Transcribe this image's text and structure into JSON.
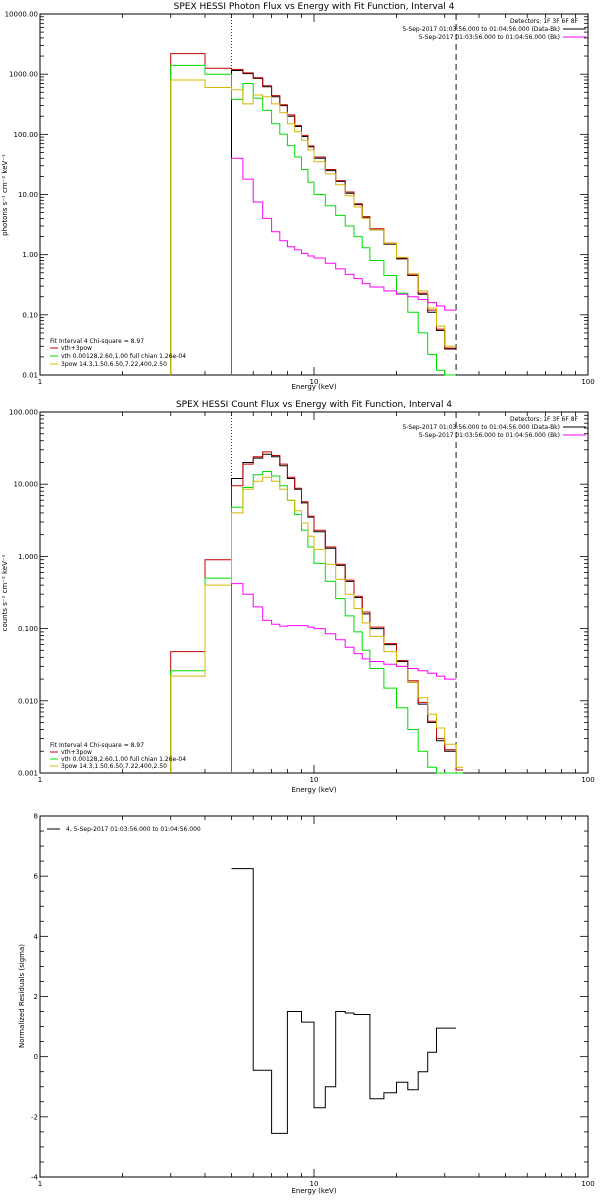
{
  "colors": {
    "total": "#000000",
    "vth_3pow": "#c00000",
    "vth": "#00dd00",
    "pow": "#d4b800",
    "background": "#ff00ff"
  },
  "chart_data": [
    {
      "type": "line",
      "title": "SPEX HESSI Photon Flux vs Energy with Fit Function, Interval 4",
      "xlabel": "Energy (keV)",
      "ylabel": "photons s⁻¹ cm⁻² keV⁻¹",
      "xscale": "log",
      "yscale": "log",
      "xlim": [
        1,
        100
      ],
      "ylim": [
        0.01,
        10000
      ],
      "x_ticks": [
        "1",
        "10",
        "100"
      ],
      "y_ticks": [
        "0.01",
        "0.10",
        "1.00",
        "10.00",
        "100.00",
        "1000.00",
        "10000.00"
      ],
      "detectors": "Detectors: 1F 3F 6F 8F",
      "data_label": "5-Sep-2017 01:03:56.000 to 01:04:56.000 (Data-Bk)",
      "bk_label": "5-Sep-2017 01:03:56.000 to 01:04:56.000 (Bk)",
      "fit_text": "Fit Interval 4   Chi-square = 8.97",
      "legend": [
        "vth+3pow",
        "vth 0.00128,2.60,1.00  full chian 1.26e-04",
        "3pow 14.3,1.50,6.50,7.22,400,2.50"
      ],
      "fit_range": [
        5,
        33
      ],
      "bin_edges": [
        3.0,
        4.0,
        5.0,
        5.5,
        6.0,
        6.5,
        7.0,
        7.5,
        8.0,
        8.5,
        9.0,
        9.5,
        10.0,
        11.0,
        12.0,
        13.0,
        14.0,
        15.0,
        16.0,
        18.0,
        20.0,
        22.0,
        24.0,
        26.0,
        28.0,
        30.0,
        33.0
      ],
      "series": [
        {
          "name": "total_dk",
          "color_key": "total",
          "values": [
            null,
            null,
            1150,
            1020,
            850,
            620,
            420,
            300,
            200,
            135,
            92,
            62,
            40,
            25,
            16.5,
            10.5,
            6.8,
            4.2,
            2.6,
            1.5,
            0.85,
            0.45,
            0.22,
            0.11,
            0.055,
            0.027
          ]
        },
        {
          "name": "vth+3pow",
          "color_key": "vth_3pow",
          "values": [
            2200,
            1250,
            1200,
            1050,
            870,
            640,
            440,
            310,
            210,
            140,
            96,
            64,
            42,
            26,
            17,
            11,
            7,
            4.3,
            2.7,
            1.55,
            0.88,
            0.46,
            0.23,
            0.12,
            0.058,
            0.028
          ]
        },
        {
          "name": "vth",
          "color_key": "vth",
          "values": [
            1400,
            1000,
            380,
            700,
            400,
            250,
            150,
            100,
            65,
            42,
            26,
            16,
            10,
            6.5,
            4.5,
            3,
            2,
            1.3,
            0.8,
            0.45,
            0.23,
            0.11,
            0.05,
            0.022,
            0.012,
            0.009
          ]
        },
        {
          "name": "3pow",
          "color_key": "pow",
          "values": [
            800,
            600,
            550,
            320,
            450,
            420,
            320,
            230,
            150,
            110,
            80,
            55,
            35,
            22,
            14.5,
            9.5,
            6.2,
            4,
            2.6,
            1.55,
            0.9,
            0.48,
            0.25,
            0.13,
            0.065,
            0.03
          ]
        },
        {
          "name": "background",
          "color_key": "background",
          "values": [
            null,
            null,
            40,
            18,
            7.5,
            4,
            2.4,
            1.7,
            1.35,
            1.2,
            1.05,
            0.95,
            0.88,
            0.72,
            0.58,
            0.47,
            0.4,
            0.33,
            0.29,
            0.25,
            0.22,
            0.2,
            0.18,
            0.16,
            0.14,
            0.12
          ]
        }
      ]
    },
    {
      "type": "line",
      "title": "SPEX HESSI Count Flux vs Energy with Fit Function, Interval 4",
      "xlabel": "Energy (keV)",
      "ylabel": "counts s⁻¹ cm⁻² keV⁻¹",
      "xscale": "log",
      "yscale": "log",
      "xlim": [
        1,
        100
      ],
      "ylim": [
        0.001,
        100
      ],
      "x_ticks": [
        "1",
        "10",
        "100"
      ],
      "y_ticks": [
        "0.001",
        "0.010",
        "0.100",
        "1.000",
        "10.000",
        "100.000"
      ],
      "detectors": "Detectors: 1F 3F 6F 8F",
      "data_label": "5-Sep-2017 01:03:56.000 to 01:04:56.000 (Data-Bk)",
      "bk_label": "5-Sep-2017 01:03:56.000 to 01:04:56.000 (Bk)",
      "fit_text": "Fit Interval 4   Chi-square = 8.97",
      "legend": [
        "vth+3pow",
        "vth 0.00128,2.60,1.00  full chian 1.26e-04",
        "3pow 14.3,1.50,6.50,7.22,400,2.50"
      ],
      "fit_range": [
        5,
        33
      ],
      "bin_edges": [
        3.0,
        4.0,
        5.0,
        5.5,
        6.0,
        6.5,
        7.0,
        7.5,
        8.0,
        8.5,
        9.0,
        9.5,
        10.0,
        11.0,
        12.0,
        13.0,
        14.0,
        15.0,
        16.0,
        18.0,
        20.0,
        22.0,
        24.0,
        26.0,
        28.0,
        30.0,
        33.0,
        35.0
      ],
      "series": [
        {
          "name": "total_dk",
          "color_key": "total",
          "values": [
            null,
            null,
            12,
            20,
            23,
            26,
            24,
            18,
            12,
            8.5,
            5.5,
            3.5,
            2.2,
            1.3,
            0.75,
            0.45,
            0.27,
            0.16,
            0.1,
            0.06,
            0.035,
            0.018,
            0.009,
            0.005,
            0.0028,
            0.002,
            0.0011
          ]
        },
        {
          "name": "vth+3pow",
          "color_key": "vth_3pow",
          "values": [
            0.048,
            0.9,
            9.5,
            19,
            24,
            28,
            25,
            19,
            12.5,
            8.8,
            5.7,
            3.6,
            2.3,
            1.35,
            0.78,
            0.47,
            0.28,
            0.17,
            0.105,
            0.062,
            0.036,
            0.019,
            0.0095,
            0.0052,
            0.003,
            0.0021,
            0.0011
          ]
        },
        {
          "name": "vth",
          "color_key": "vth",
          "values": [
            0.026,
            0.5,
            4.8,
            9,
            13.5,
            15,
            13,
            9.5,
            6,
            3.8,
            2.3,
            1.35,
            0.8,
            0.45,
            0.26,
            0.15,
            0.09,
            0.05,
            0.028,
            0.015,
            0.008,
            0.004,
            0.002,
            0.0012,
            0.001,
            0.001,
            0.001
          ]
        },
        {
          "name": "3pow",
          "color_key": "pow",
          "values": [
            0.022,
            0.4,
            4,
            8.5,
            11,
            12.5,
            11,
            8.5,
            6,
            4.3,
            2.9,
            1.9,
            1.25,
            0.78,
            0.48,
            0.3,
            0.19,
            0.12,
            0.078,
            0.048,
            0.03,
            0.018,
            0.011,
            0.0065,
            0.0042,
            0.0025,
            0.0012
          ]
        },
        {
          "name": "background",
          "color_key": "background",
          "values": [
            null,
            null,
            0.42,
            0.3,
            0.2,
            0.13,
            0.115,
            0.108,
            0.11,
            0.11,
            0.11,
            0.105,
            0.1,
            0.085,
            0.07,
            0.055,
            0.045,
            0.038,
            0.035,
            0.032,
            0.03,
            0.028,
            0.026,
            0.024,
            0.022,
            0.02,
            null
          ]
        }
      ]
    },
    {
      "type": "line",
      "title": "",
      "xlabel": "Energy (keV)",
      "ylabel": "Normalized Residuals (sigma)",
      "xscale": "log",
      "yscale": "linear",
      "xlim": [
        1,
        100
      ],
      "ylim": [
        -4,
        8
      ],
      "x_ticks": [
        "1",
        "10",
        "100"
      ],
      "y_ticks": [
        "-4",
        "-2",
        "0",
        "2",
        "4",
        "6",
        "8"
      ],
      "legend": [
        "4,  5-Sep-2017 01:03:56.000 to 01:04:56.000"
      ],
      "bin_edges": [
        5.0,
        5.5,
        6.0,
        6.5,
        7.0,
        7.5,
        8.0,
        8.5,
        9.0,
        9.5,
        10.0,
        11.0,
        12.0,
        13.0,
        14.0,
        15.0,
        16.0,
        18.0,
        20.0,
        22.0,
        24.0,
        26.0,
        28.0,
        30.0,
        33.0
      ],
      "series": [
        {
          "name": "residuals",
          "color_key": "total",
          "values": [
            6.25,
            6.25,
            -0.45,
            -0.45,
            -2.55,
            -2.55,
            1.5,
            1.5,
            1.15,
            1.15,
            -1.7,
            -1.0,
            1.5,
            1.45,
            1.4,
            1.4,
            -1.4,
            -1.2,
            -0.85,
            -1.1,
            -0.5,
            0.15,
            0.95,
            0.95
          ]
        }
      ]
    }
  ]
}
